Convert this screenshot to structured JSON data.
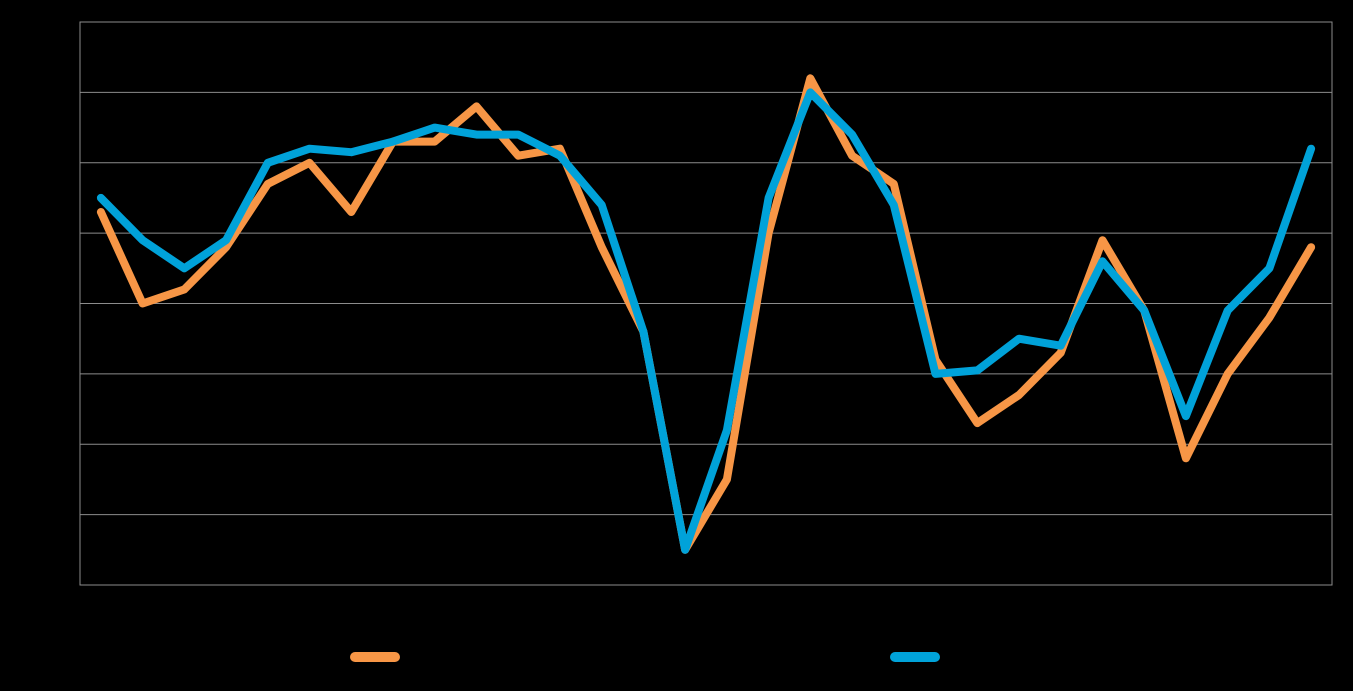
{
  "chart_data": {
    "type": "line",
    "title": "",
    "xlabel": "",
    "ylabel": "",
    "ylim": [
      0,
      8
    ],
    "grid": true,
    "legend_position": "bottom-center",
    "background_color": "#000000",
    "grid_color": "#8c8c8c",
    "x": [
      1,
      2,
      3,
      4,
      5,
      6,
      7,
      8,
      9,
      10,
      11,
      12,
      13,
      14,
      15,
      16,
      17,
      18,
      19,
      20,
      21,
      22,
      23,
      24,
      25,
      26,
      27,
      28,
      29,
      30
    ],
    "series": [
      {
        "color": "#f79646",
        "values": [
          5.3,
          4.0,
          4.2,
          4.8,
          5.7,
          6.0,
          5.3,
          6.3,
          6.3,
          6.8,
          6.1,
          6.2,
          4.8,
          3.6,
          0.5,
          1.5,
          5.0,
          7.2,
          6.1,
          5.7,
          3.2,
          2.3,
          2.7,
          3.3,
          4.9,
          3.9,
          1.8,
          3.0,
          3.8,
          4.8
        ]
      },
      {
        "color": "#00a2d9",
        "values": [
          5.5,
          4.9,
          4.5,
          4.9,
          6.0,
          6.2,
          6.15,
          6.3,
          6.5,
          6.4,
          6.4,
          6.1,
          5.4,
          3.6,
          0.5,
          2.2,
          5.5,
          7.0,
          6.4,
          5.4,
          3.0,
          3.05,
          3.5,
          3.4,
          4.6,
          3.9,
          2.4,
          3.9,
          4.5,
          6.2
        ]
      }
    ]
  }
}
